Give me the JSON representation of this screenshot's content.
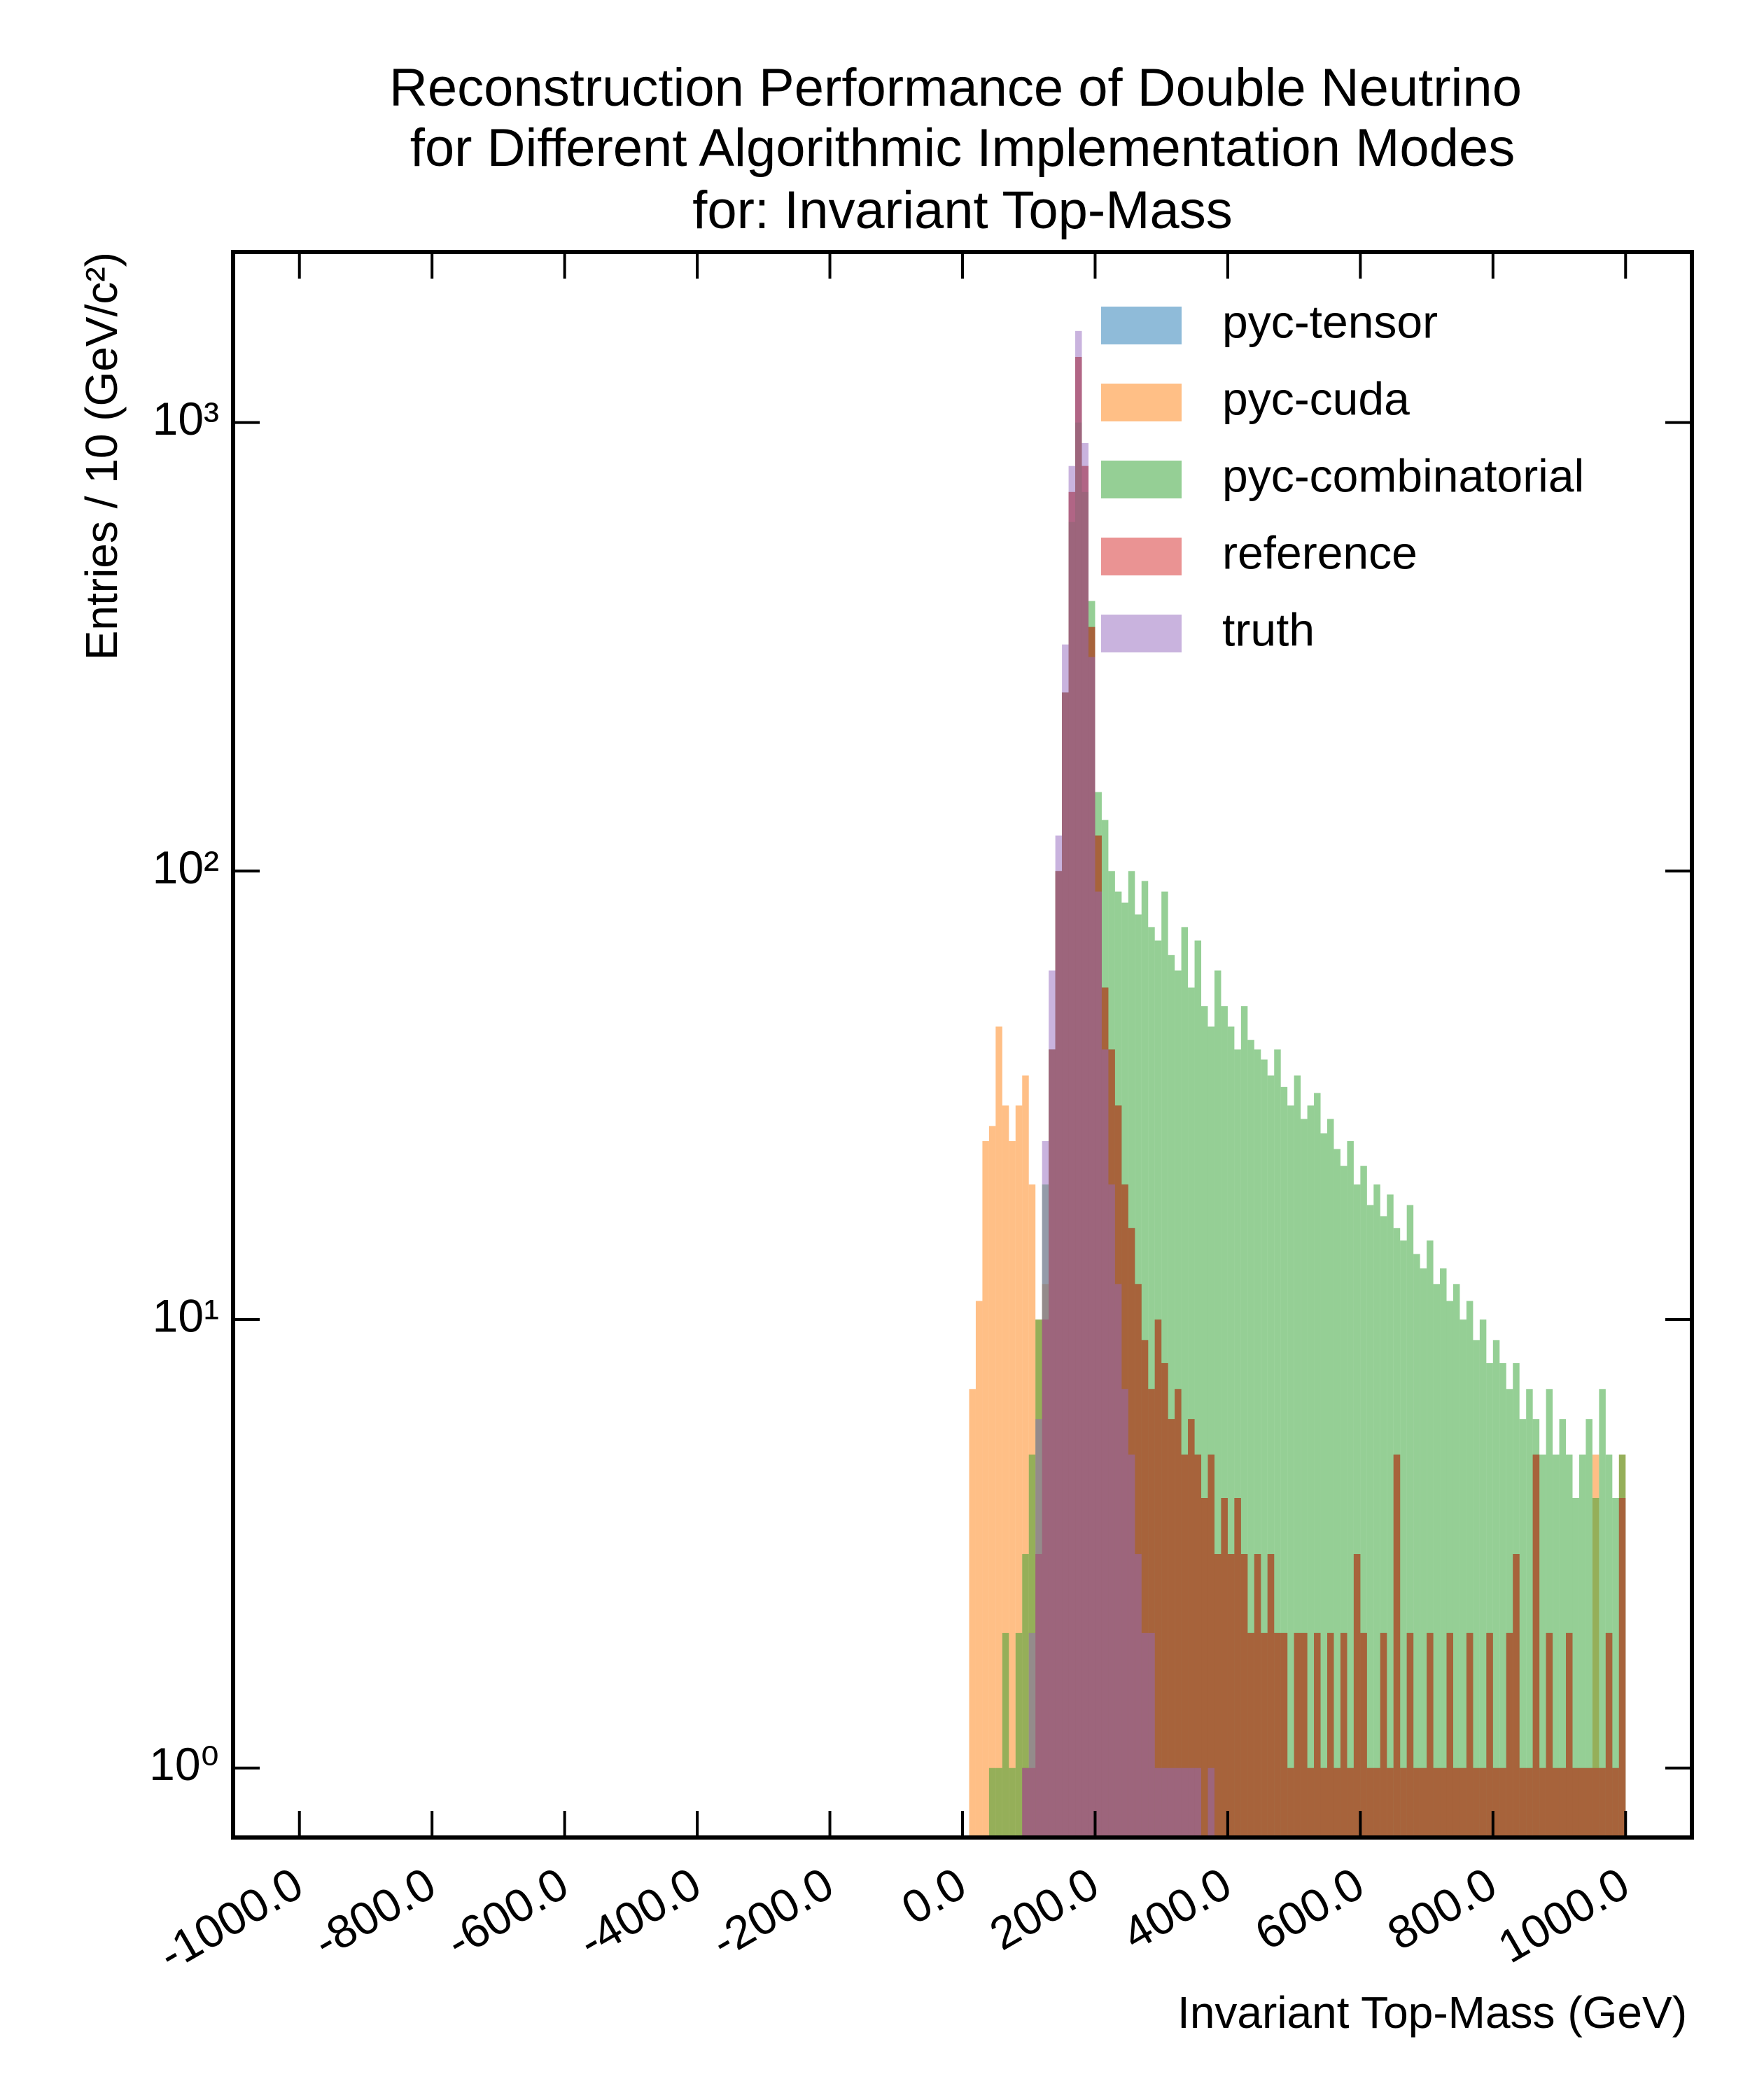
{
  "chart_data": {
    "type": "histogram",
    "title": [
      "Reconstruction Performance of Double Neutrino",
      "for Different Algorithmic Implementation Modes",
      "for: Invariant Top-Mass"
    ],
    "xlabel": "Invariant Top-Mass (GeV)",
    "ylabel": "Entries  / 10 (GeV/c²)",
    "log_y": true,
    "bins": [
      0,
      10,
      20,
      30,
      40,
      50,
      60,
      70,
      80,
      90,
      100,
      110,
      120,
      130,
      140,
      150,
      160,
      170,
      180,
      190,
      200,
      210,
      220,
      230,
      240,
      250,
      260,
      270,
      280,
      290,
      300,
      310,
      320,
      330,
      340,
      350,
      360,
      370,
      380,
      390,
      400,
      410,
      420,
      430,
      440,
      450,
      460,
      470,
      480,
      490,
      500,
      510,
      520,
      530,
      540,
      550,
      560,
      570,
      580,
      590,
      600,
      610,
      620,
      630,
      640,
      650,
      660,
      670,
      680,
      690,
      700,
      710,
      720,
      730,
      740,
      750,
      760,
      770,
      780,
      790,
      800,
      810,
      820,
      830,
      840,
      850,
      860,
      870,
      880,
      890,
      900,
      910,
      920,
      930,
      940,
      950,
      960,
      970,
      980,
      990,
      1000
    ],
    "xlim": [
      -1100,
      1100
    ],
    "xticks": [
      {
        "value": -1000,
        "label": "-1000.0"
      },
      {
        "value": -800,
        "label": "-800.0"
      },
      {
        "value": -600,
        "label": "-600.0"
      },
      {
        "value": -400,
        "label": "-400.0"
      },
      {
        "value": -200,
        "label": "-200.0"
      },
      {
        "value": 0,
        "label": "0.0"
      },
      {
        "value": 200,
        "label": "200.0"
      },
      {
        "value": 400,
        "label": "400.0"
      },
      {
        "value": 600,
        "label": "600.0"
      },
      {
        "value": 800,
        "label": "800.0"
      },
      {
        "value": 1000,
        "label": "1000.0"
      }
    ],
    "ylim": [
      0.7,
      2400
    ],
    "yticks": [
      {
        "value": 1,
        "label": "10⁰"
      },
      {
        "value": 10,
        "label": "10¹"
      },
      {
        "value": 100,
        "label": "10²"
      },
      {
        "value": 1000,
        "label": "10³"
      }
    ],
    "legend_loc": "upper right",
    "series": [
      {
        "name": "pyc-tensor",
        "color": "#1f77b4",
        "values": [
          0,
          0,
          0,
          0,
          0,
          0,
          0,
          0,
          0,
          1,
          1,
          3,
          10,
          40,
          100,
          250,
          700,
          1400,
          800,
          350,
          120,
          55,
          40,
          30,
          20,
          16,
          12,
          9,
          7,
          10,
          8,
          6,
          7,
          5,
          6,
          5,
          4,
          5,
          3,
          4,
          3,
          4,
          3,
          2,
          3,
          2,
          3,
          2,
          2,
          1,
          2,
          2,
          1,
          2,
          1,
          2,
          1,
          2,
          1,
          3,
          2,
          1,
          1,
          2,
          1,
          5,
          1,
          2,
          1,
          1,
          2,
          1,
          1,
          2,
          1,
          1,
          2,
          1,
          1,
          2,
          1,
          1,
          2,
          3,
          1,
          1,
          5,
          1,
          2,
          1,
          1,
          2,
          1,
          1,
          1,
          1,
          1,
          2,
          1,
          4
        ]
      },
      {
        "name": "pyc-cuda",
        "color": "#ff7f0e",
        "values": [
          0,
          7,
          11,
          25,
          27,
          45,
          30,
          25,
          30,
          35,
          20,
          10,
          12,
          40,
          100,
          250,
          700,
          1400,
          800,
          350,
          120,
          55,
          40,
          30,
          20,
          16,
          12,
          9,
          7,
          10,
          8,
          6,
          7,
          5,
          6,
          5,
          4,
          5,
          3,
          4,
          3,
          4,
          3,
          2,
          3,
          2,
          3,
          2,
          2,
          1,
          2,
          2,
          1,
          2,
          1,
          2,
          1,
          2,
          1,
          3,
          2,
          1,
          1,
          2,
          1,
          5,
          1,
          2,
          1,
          1,
          2,
          1,
          1,
          2,
          1,
          1,
          2,
          1,
          1,
          2,
          1,
          1,
          2,
          3,
          1,
          1,
          5,
          1,
          2,
          1,
          1,
          2,
          1,
          1,
          1,
          5,
          1,
          2,
          1,
          5
        ]
      },
      {
        "name": "pyc-combinatorial",
        "color": "#2ca02c",
        "values": [
          0,
          0,
          0,
          0,
          1,
          1,
          2,
          1,
          2,
          3,
          5,
          10,
          20,
          40,
          100,
          250,
          600,
          1000,
          700,
          400,
          150,
          130,
          100,
          90,
          85,
          100,
          80,
          95,
          75,
          70,
          90,
          65,
          60,
          75,
          55,
          70,
          50,
          45,
          60,
          50,
          45,
          40,
          50,
          42,
          40,
          38,
          35,
          40,
          33,
          30,
          35,
          28,
          30,
          32,
          26,
          28,
          24,
          22,
          25,
          20,
          22,
          18,
          20,
          17,
          19,
          16,
          15,
          18,
          14,
          13,
          15,
          12,
          13,
          11,
          12,
          10,
          11,
          9,
          10,
          8,
          9,
          8,
          7,
          8,
          6,
          7,
          6,
          5,
          7,
          5,
          6,
          5,
          4,
          5,
          6,
          4,
          7,
          5,
          4,
          5
        ]
      },
      {
        "name": "reference",
        "color": "#d62728",
        "values": [
          0,
          0,
          0,
          0,
          0,
          0,
          0,
          0,
          0,
          1,
          1,
          3,
          10,
          40,
          100,
          250,
          700,
          1400,
          800,
          350,
          120,
          55,
          40,
          30,
          20,
          16,
          12,
          9,
          7,
          10,
          8,
          6,
          7,
          5,
          6,
          5,
          4,
          5,
          3,
          4,
          3,
          4,
          3,
          2,
          3,
          2,
          3,
          2,
          2,
          1,
          2,
          2,
          1,
          2,
          1,
          2,
          1,
          2,
          1,
          3,
          2,
          1,
          1,
          2,
          1,
          5,
          1,
          2,
          1,
          1,
          2,
          1,
          1,
          2,
          1,
          1,
          2,
          1,
          1,
          2,
          1,
          1,
          2,
          3,
          1,
          1,
          5,
          1,
          2,
          1,
          1,
          2,
          1,
          1,
          1,
          1,
          1,
          2,
          1,
          4
        ]
      },
      {
        "name": "truth",
        "color": "#9467bd",
        "values": [
          0,
          0,
          0,
          0,
          0,
          0,
          0,
          0,
          0,
          1,
          2,
          6,
          25,
          60,
          120,
          320,
          800,
          1600,
          900,
          300,
          90,
          40,
          20,
          12,
          7,
          5,
          3,
          2,
          2,
          1,
          1,
          1,
          1,
          1,
          1,
          1,
          0,
          1,
          0,
          0,
          0,
          0,
          0,
          0,
          0,
          0,
          0,
          0,
          0,
          0,
          0,
          0,
          0,
          0,
          0,
          0,
          0,
          0,
          0,
          0,
          0,
          0,
          0,
          0,
          0,
          0,
          0,
          0,
          0,
          0,
          0,
          0,
          0,
          0,
          0,
          0,
          0,
          0,
          0,
          0,
          0,
          0,
          0,
          0,
          0,
          0,
          0,
          0,
          0,
          0,
          0,
          0,
          0,
          0,
          0,
          0,
          0,
          0,
          0,
          0
        ]
      }
    ]
  }
}
